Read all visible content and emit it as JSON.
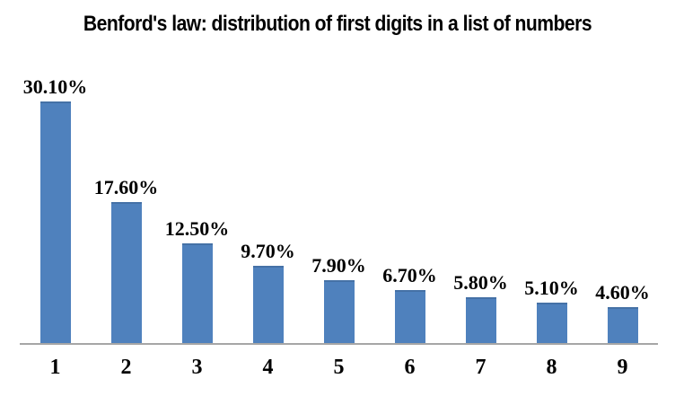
{
  "chart_data": {
    "type": "bar",
    "title": "Benford's law: distribution of first digits in a list of numbers",
    "categories": [
      "1",
      "2",
      "3",
      "4",
      "5",
      "6",
      "7",
      "8",
      "9"
    ],
    "values": [
      30.1,
      17.6,
      12.5,
      9.7,
      7.9,
      6.7,
      5.8,
      5.1,
      4.6
    ],
    "data_labels": [
      "30.10%",
      "17.60%",
      "12.50%",
      "9.70%",
      "7.90%",
      "6.70%",
      "5.80%",
      "5.10%",
      "4.60%"
    ],
    "xlabel": "",
    "ylabel": "",
    "ylim": [
      0,
      32
    ],
    "grid": false,
    "legend": false,
    "layout": "single series, vertical bars, value labels above bars, category labels below axis",
    "bar_color": "#4f81bd",
    "axis_line_color": "#a6a6a6",
    "text_color": "#000000",
    "background_color": "#ffffff"
  }
}
